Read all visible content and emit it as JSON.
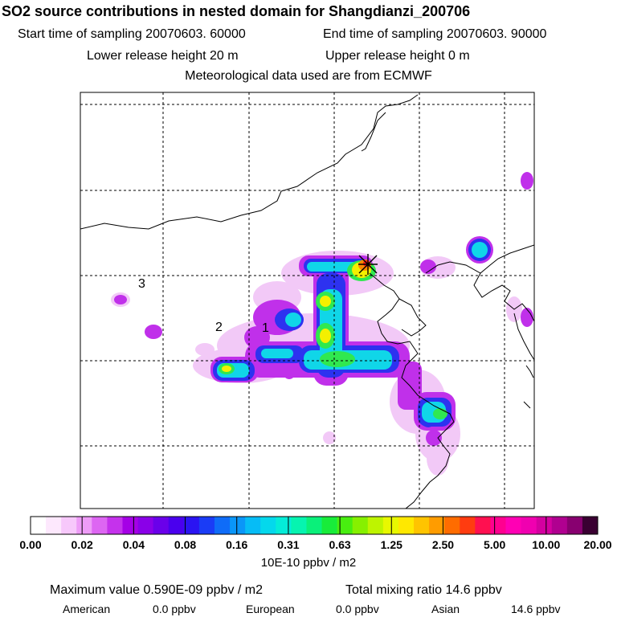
{
  "header": {
    "title": "SO2 source contributions in nested domain for Shangdianzi_200706",
    "start_time": "Start time of sampling 20070603. 60000",
    "end_time": "End time of sampling 20070603. 90000",
    "lower_release": "Lower release height   20 m",
    "upper_release": "Upper release height    0 m",
    "met_data": "Meteorological data used are from ECMWF"
  },
  "map": {
    "region_labels": [
      "3",
      "2",
      "1"
    ],
    "receptor_marker": "cross-star-icon"
  },
  "colorbar": {
    "ticks": [
      "0.00",
      "0.02",
      "0.04",
      "0.08",
      "0.16",
      "0.31",
      "0.63",
      "1.25",
      "2.50",
      "5.00",
      "10.00",
      "20.00"
    ],
    "colors": [
      "#ffffff",
      "#fde8fd",
      "#f7c8fb",
      "#ee9cf7",
      "#dd66f2",
      "#c532ec",
      "#a500e6",
      "#8a00e8",
      "#6a00ea",
      "#4a00ee",
      "#2a14f2",
      "#1a3cf6",
      "#0f6cf8",
      "#0a96f8",
      "#06bcf6",
      "#04d8ec",
      "#04ecd8",
      "#06f4b0",
      "#0af07a",
      "#18ec3a",
      "#48ee10",
      "#86f000",
      "#bef400",
      "#e8f800",
      "#ffe800",
      "#ffc400",
      "#ff9c00",
      "#ff6c00",
      "#ff3c10",
      "#ff1050",
      "#ff0090",
      "#ff00b4",
      "#f000b0",
      "#d400a0",
      "#b00090",
      "#880070",
      "#3a0032"
    ],
    "units": "10E-10 ppbv / m2"
  },
  "summary": {
    "max_value": "Maximum value  0.590E-09 ppbv / m2",
    "total": "Total mixing ratio      14.6 ppbv",
    "american_label": "American",
    "american_value": "0.0 ppbv",
    "european_label": "European",
    "european_value": "0.0 ppbv",
    "asian_label": "Asian",
    "asian_value": "14.6 ppbv"
  }
}
